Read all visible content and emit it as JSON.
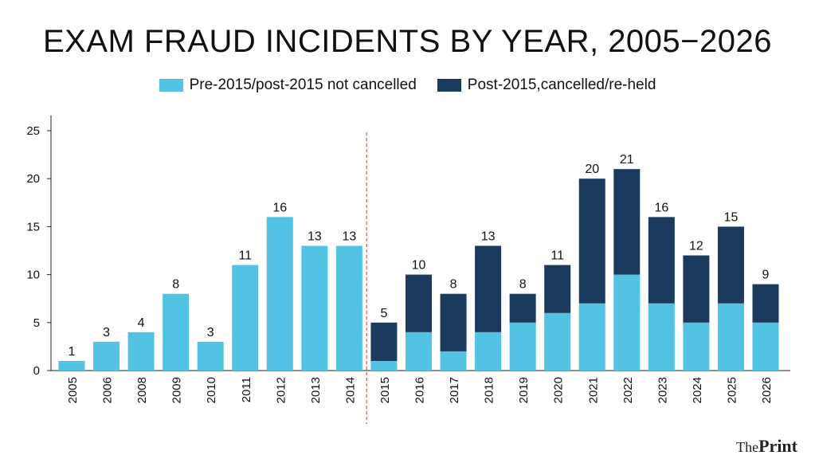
{
  "chart_data": {
    "type": "bar",
    "stacked": true,
    "title": "EXAM FRAUD INCIDENTS BY YEAR, 2005−2026",
    "categories": [
      "2005",
      "2006",
      "2008",
      "2009",
      "2010",
      "2011",
      "2012",
      "2013",
      "2014",
      "2015",
      "2016",
      "2017",
      "2018",
      "2019",
      "2020",
      "2021",
      "2022",
      "2023",
      "2024",
      "2025",
      "2026"
    ],
    "series": [
      {
        "name": "Pre-2015/post-2015 not cancelled",
        "color": "#53c3e4",
        "values": [
          1,
          3,
          4,
          8,
          3,
          11,
          16,
          13,
          13,
          1,
          4,
          2,
          4,
          5,
          6,
          7,
          10,
          7,
          5,
          7,
          5
        ]
      },
      {
        "name": "Post-2015,cancelled/re-held",
        "color": "#1a3b5e",
        "values": [
          0,
          0,
          0,
          0,
          0,
          0,
          0,
          0,
          0,
          4,
          6,
          6,
          9,
          3,
          5,
          13,
          11,
          9,
          7,
          8,
          4
        ]
      }
    ],
    "totals": [
      1,
      3,
      4,
      8,
      3,
      11,
      16,
      13,
      13,
      5,
      10,
      8,
      13,
      8,
      11,
      20,
      21,
      16,
      12,
      15,
      9
    ],
    "ylim": [
      0,
      25
    ],
    "yticks": [
      0,
      5,
      10,
      15,
      20,
      25
    ],
    "divider_after_category": "2014",
    "legend_position": "top-center",
    "grid": false
  },
  "brand": {
    "prefix": "The",
    "name": "Print"
  }
}
